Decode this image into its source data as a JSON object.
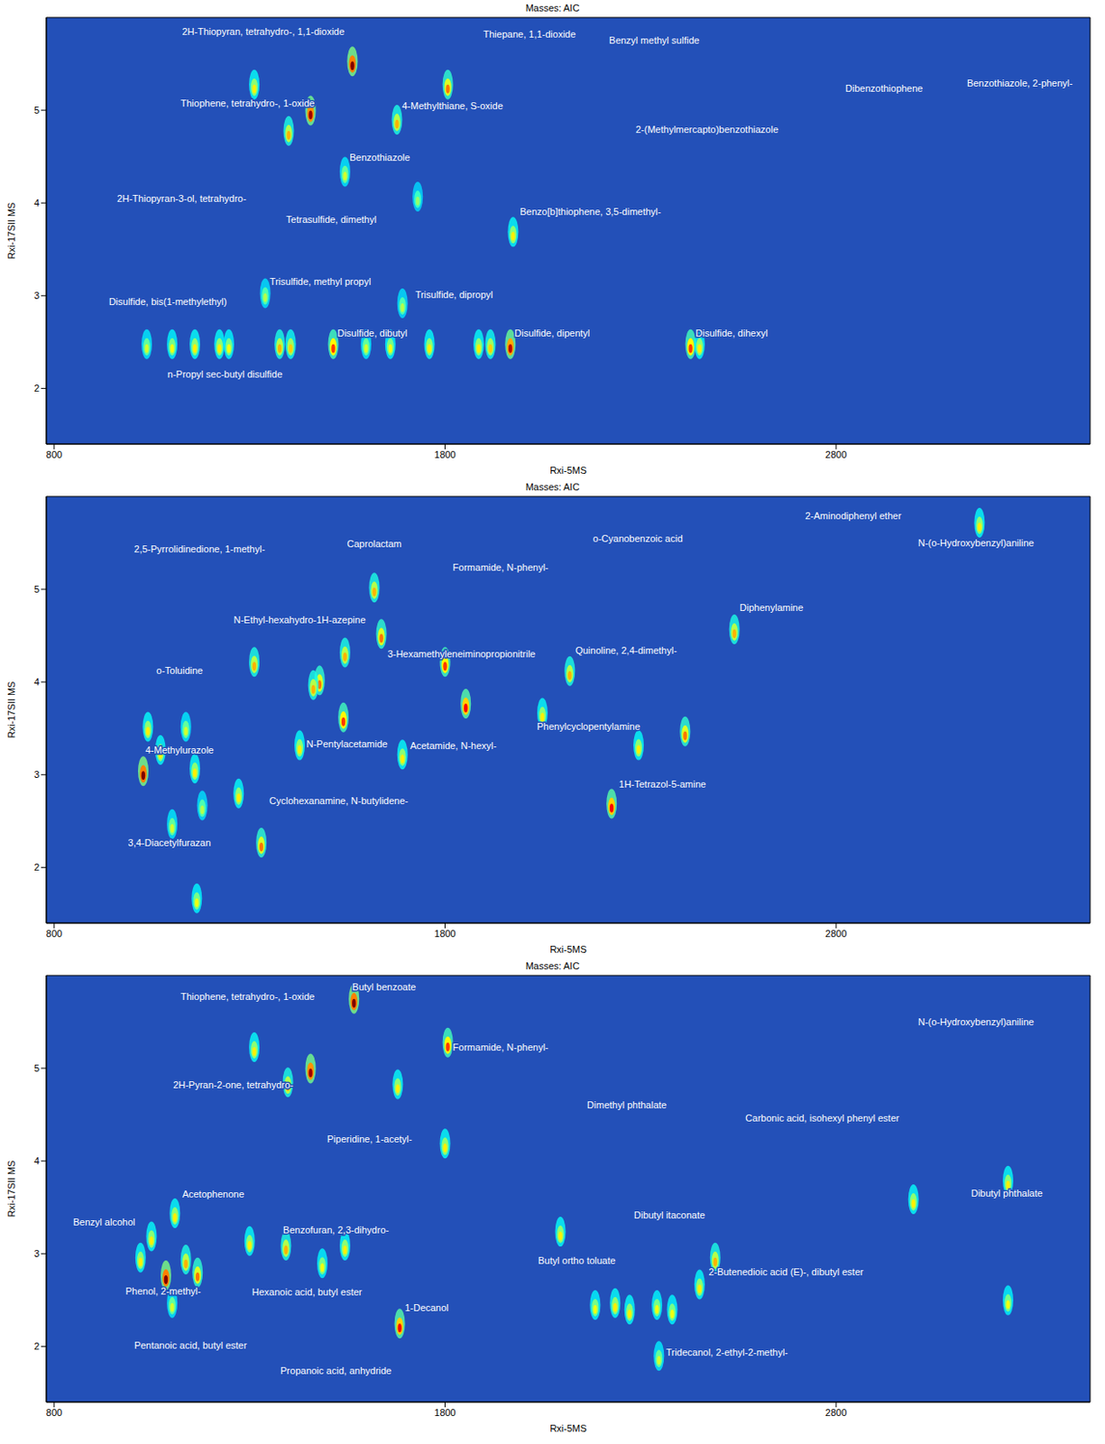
{
  "chart_data": [
    {
      "type": "scatter",
      "title": "Masses: AIC",
      "x_label": "Rxi-5MS",
      "y_label": "Rxi-17SII MS",
      "xlim": [
        780,
        3450
      ],
      "ylim": [
        1.4,
        6.0
      ],
      "xticks": [
        800,
        1800,
        2800
      ],
      "yticks": [
        2,
        3,
        4,
        5
      ],
      "grid": false,
      "x": [
        1563,
        1456,
        1400,
        1312,
        1807,
        1677,
        1544,
        1974,
        1730,
        1037,
        1102,
        1160,
        1223,
        1247,
        1377,
        1405,
        1514,
        1598,
        1660,
        1760,
        1886,
        1916,
        1967,
        2428,
        2451,
        1340,
        1691
      ],
      "y": [
        5.48,
        4.95,
        4.73,
        5.23,
        5.23,
        4.85,
        4.29,
        3.64,
        4.02,
        2.43,
        2.43,
        2.43,
        2.43,
        2.43,
        2.43,
        2.43,
        2.43,
        2.43,
        2.43,
        2.43,
        2.43,
        2.43,
        2.43,
        2.43,
        2.43,
        2.98,
        2.87
      ],
      "intensity": [
        1.0,
        0.95,
        0.5,
        0.4,
        0.6,
        0.5,
        0.3,
        0.4,
        0.2,
        0.3,
        0.35,
        0.4,
        0.4,
        0.35,
        0.5,
        0.45,
        0.7,
        0.3,
        0.35,
        0.4,
        0.4,
        0.45,
        0.9,
        0.7,
        0.4,
        0.25,
        0.25
      ],
      "annotations": [
        {
          "text": "2H-Thiopyran, tetrahydro-, 1,1-dioxide",
          "x": 1335,
          "y": 5.85
        },
        {
          "text": "Thiophene, tetrahydro-, 1-oxide",
          "x": 1295,
          "y": 5.08
        },
        {
          "text": "Thiepane, 1,1-dioxide",
          "x": 2016,
          "y": 5.82
        },
        {
          "text": "Benzyl methyl sulfide",
          "x": 2335,
          "y": 5.75
        },
        {
          "text": "4-Methylthiane, S-oxide",
          "x": 1819,
          "y": 5.05
        },
        {
          "text": "Dibenzothiophene",
          "x": 2923,
          "y": 5.24
        },
        {
          "text": "Benzothiazole, 2-phenyl-",
          "x": 3270,
          "y": 5.29
        },
        {
          "text": "2-(Methylmercapto)benzothiazole",
          "x": 2470,
          "y": 4.79
        },
        {
          "text": "Benzothiazole",
          "x": 1633,
          "y": 4.49
        },
        {
          "text": "2H-Thiopyran-3-ol, tetrahydro-",
          "x": 1126,
          "y": 4.05
        },
        {
          "text": "Tetrasulfide, dimethyl",
          "x": 1509,
          "y": 3.82
        },
        {
          "text": "Benzo[b]thiophene, 3,5-dimethyl-",
          "x": 2172,
          "y": 3.91
        },
        {
          "text": "Trisulfide, methyl propyl",
          "x": 1481,
          "y": 3.15
        },
        {
          "text": "Disulfide, bis(1-methylethyl)",
          "x": 1091,
          "y": 2.94
        },
        {
          "text": "Trisulfide, dipropyl",
          "x": 1823,
          "y": 3.01
        },
        {
          "text": "Disulfide, dibutyl",
          "x": 1614,
          "y": 2.6
        },
        {
          "text": "Disulfide, dipentyl",
          "x": 2074,
          "y": 2.6
        },
        {
          "text": "Disulfide, dihexyl",
          "x": 2533,
          "y": 2.6
        },
        {
          "text": "n-Propyl sec-butyl disulfide",
          "x": 1237,
          "y": 2.15
        }
      ]
    },
    {
      "type": "scatter",
      "title": "Masses: AIC",
      "x_label": "Rxi-5MS",
      "y_label": "Rxi-17SII MS",
      "xlim": [
        780,
        3450
      ],
      "ylim": [
        1.4,
        6.0
      ],
      "xticks": [
        800,
        1800,
        2800
      ],
      "yticks": [
        2,
        3,
        4,
        5
      ],
      "grid": false,
      "x": [
        1028,
        1040,
        1072,
        1160,
        1137,
        1102,
        1165,
        1179,
        1272,
        1330,
        1312,
        1428,
        1479,
        1463,
        1540,
        1544,
        1619,
        1637,
        1691,
        1800,
        1853,
        2049,
        2119,
        2226,
        2295,
        2414,
        2540,
        3167
      ],
      "y": [
        2.99,
        3.47,
        3.22,
        3.02,
        3.47,
        2.42,
        1.62,
        2.62,
        2.75,
        2.22,
        4.17,
        3.27,
        3.97,
        3.92,
        3.57,
        4.27,
        4.97,
        4.47,
        3.17,
        4.17,
        3.72,
        3.62,
        4.07,
        2.64,
        3.27,
        3.42,
        4.52,
        5.67
      ],
      "intensity": [
        1.0,
        0.4,
        0.4,
        0.4,
        0.3,
        0.3,
        0.35,
        0.25,
        0.4,
        0.6,
        0.5,
        0.4,
        0.6,
        0.5,
        0.7,
        0.5,
        0.5,
        0.6,
        0.4,
        0.7,
        0.8,
        0.4,
        0.5,
        0.8,
        0.4,
        0.6,
        0.5,
        0.4
      ],
      "annotations": [
        {
          "text": "2,5-Pyrrolidinedione, 1-methyl-",
          "x": 1172,
          "y": 5.43
        },
        {
          "text": "Caprolactam",
          "x": 1619,
          "y": 5.49
        },
        {
          "text": "Formamide, N-phenyl-",
          "x": 1942,
          "y": 5.24
        },
        {
          "text": "o-Cyanobenzoic acid",
          "x": 2293,
          "y": 5.55
        },
        {
          "text": "2-Aminodiphenyl ether",
          "x": 2844,
          "y": 5.79
        },
        {
          "text": "N-(o-Hydroxybenzyl)aniline",
          "x": 3158,
          "y": 5.5
        },
        {
          "text": "N-Ethyl-hexahydro-1H-azepine",
          "x": 1428,
          "y": 4.67
        },
        {
          "text": "Diphenylamine",
          "x": 2635,
          "y": 4.8
        },
        {
          "text": "o-Toluidine",
          "x": 1121,
          "y": 4.12
        },
        {
          "text": "3-Hexamethyleneiminopropionitrile",
          "x": 1842,
          "y": 4.3
        },
        {
          "text": "Quinoline, 2,4-dimethyl-",
          "x": 2263,
          "y": 4.34
        },
        {
          "text": "Phenylcyclopentylamine",
          "x": 2167,
          "y": 3.52
        },
        {
          "text": "4-Methylurazole",
          "x": 1121,
          "y": 3.27
        },
        {
          "text": "N-Pentylacetamide",
          "x": 1549,
          "y": 3.33
        },
        {
          "text": "Acetamide, N-hexyl-",
          "x": 1821,
          "y": 3.31
        },
        {
          "text": "1H-Tetrazol-5-amine",
          "x": 2356,
          "y": 2.9
        },
        {
          "text": "Cyclohexanamine, N-butylidene-",
          "x": 1528,
          "y": 2.72
        },
        {
          "text": "3,4-Diacetylfurazan",
          "x": 1095,
          "y": 2.27
        }
      ]
    },
    {
      "type": "scatter",
      "title": "Masses: AIC",
      "x_label": "Rxi-5MS",
      "y_label": "Rxi-17SII MS",
      "xlim": [
        780,
        3450
      ],
      "ylim": [
        1.4,
        6.0
      ],
      "xticks": [
        800,
        1800,
        2800
      ],
      "yticks": [
        2,
        3,
        4,
        5
      ],
      "grid": false,
      "x": [
        1567,
        1456,
        1398,
        1312,
        1807,
        1679,
        1086,
        1049,
        1021,
        1109,
        1137,
        1167,
        1102,
        1300,
        1393,
        1486,
        1544,
        1684,
        1800,
        2095,
        2184,
        2235,
        2272,
        2342,
        2381,
        2451,
        2491,
        2998,
        3240,
        3240,
        2347
      ],
      "y": [
        5.7,
        4.95,
        4.8,
        5.18,
        5.23,
        4.78,
        2.72,
        3.14,
        2.91,
        3.39,
        2.89,
        2.75,
        2.42,
        3.09,
        3.04,
        2.85,
        3.04,
        2.2,
        4.14,
        3.19,
        2.4,
        2.42,
        2.35,
        2.4,
        2.35,
        2.62,
        2.91,
        3.54,
        3.74,
        2.45,
        1.85
      ],
      "intensity": [
        1.0,
        0.95,
        0.5,
        0.4,
        0.7,
        0.4,
        1.0,
        0.4,
        0.4,
        0.4,
        0.5,
        0.6,
        0.3,
        0.4,
        0.5,
        0.35,
        0.4,
        0.8,
        0.4,
        0.4,
        0.35,
        0.4,
        0.4,
        0.35,
        0.35,
        0.4,
        0.5,
        0.4,
        0.4,
        0.35,
        0.3
      ],
      "annotations": [
        {
          "text": "Thiophene, tetrahydro-, 1-oxide",
          "x": 1295,
          "y": 5.77
        },
        {
          "text": "Butyl benzoate",
          "x": 1644,
          "y": 5.88
        },
        {
          "text": "N-(o-Hydroxybenzyl)aniline",
          "x": 3158,
          "y": 5.5
        },
        {
          "text": "Formamide, N-phenyl-",
          "x": 1942,
          "y": 5.23
        },
        {
          "text": "2H-Pyran-2-one, tetrahydro-",
          "x": 1258,
          "y": 4.82
        },
        {
          "text": "Dimethyl phthalate",
          "x": 2265,
          "y": 4.6
        },
        {
          "text": "Carbonic acid, isohexyl phenyl ester",
          "x": 2765,
          "y": 4.46
        },
        {
          "text": "Piperidine, 1-acetyl-",
          "x": 1607,
          "y": 4.24
        },
        {
          "text": "Acetophenone",
          "x": 1207,
          "y": 3.64
        },
        {
          "text": "Dibutyl phthalate",
          "x": 3237,
          "y": 3.65
        },
        {
          "text": "Benzyl alcohol",
          "x": 928,
          "y": 3.34
        },
        {
          "text": "Dibutyl itaconate",
          "x": 2374,
          "y": 3.42
        },
        {
          "text": "Benzofuran, 2,3-dihydro-",
          "x": 1521,
          "y": 3.26
        },
        {
          "text": "Butyl ortho toluate",
          "x": 2137,
          "y": 2.93
        },
        {
          "text": "Phenol, 2-methyl-",
          "x": 1079,
          "y": 2.6
        },
        {
          "text": "2-Butenedioic acid (E)-, dibutyl ester",
          "x": 2672,
          "y": 2.8
        },
        {
          "text": "Hexanoic acid, butyl ester",
          "x": 1447,
          "y": 2.59
        },
        {
          "text": "1-Decanol",
          "x": 1753,
          "y": 2.42
        },
        {
          "text": "Pentanoic acid, butyl ester",
          "x": 1149,
          "y": 2.01
        },
        {
          "text": "Tridecanol, 2-ethyl-2-methyl-",
          "x": 2521,
          "y": 1.94
        },
        {
          "text": "Propanoic acid, anhydride",
          "x": 1521,
          "y": 1.74
        }
      ]
    }
  ]
}
